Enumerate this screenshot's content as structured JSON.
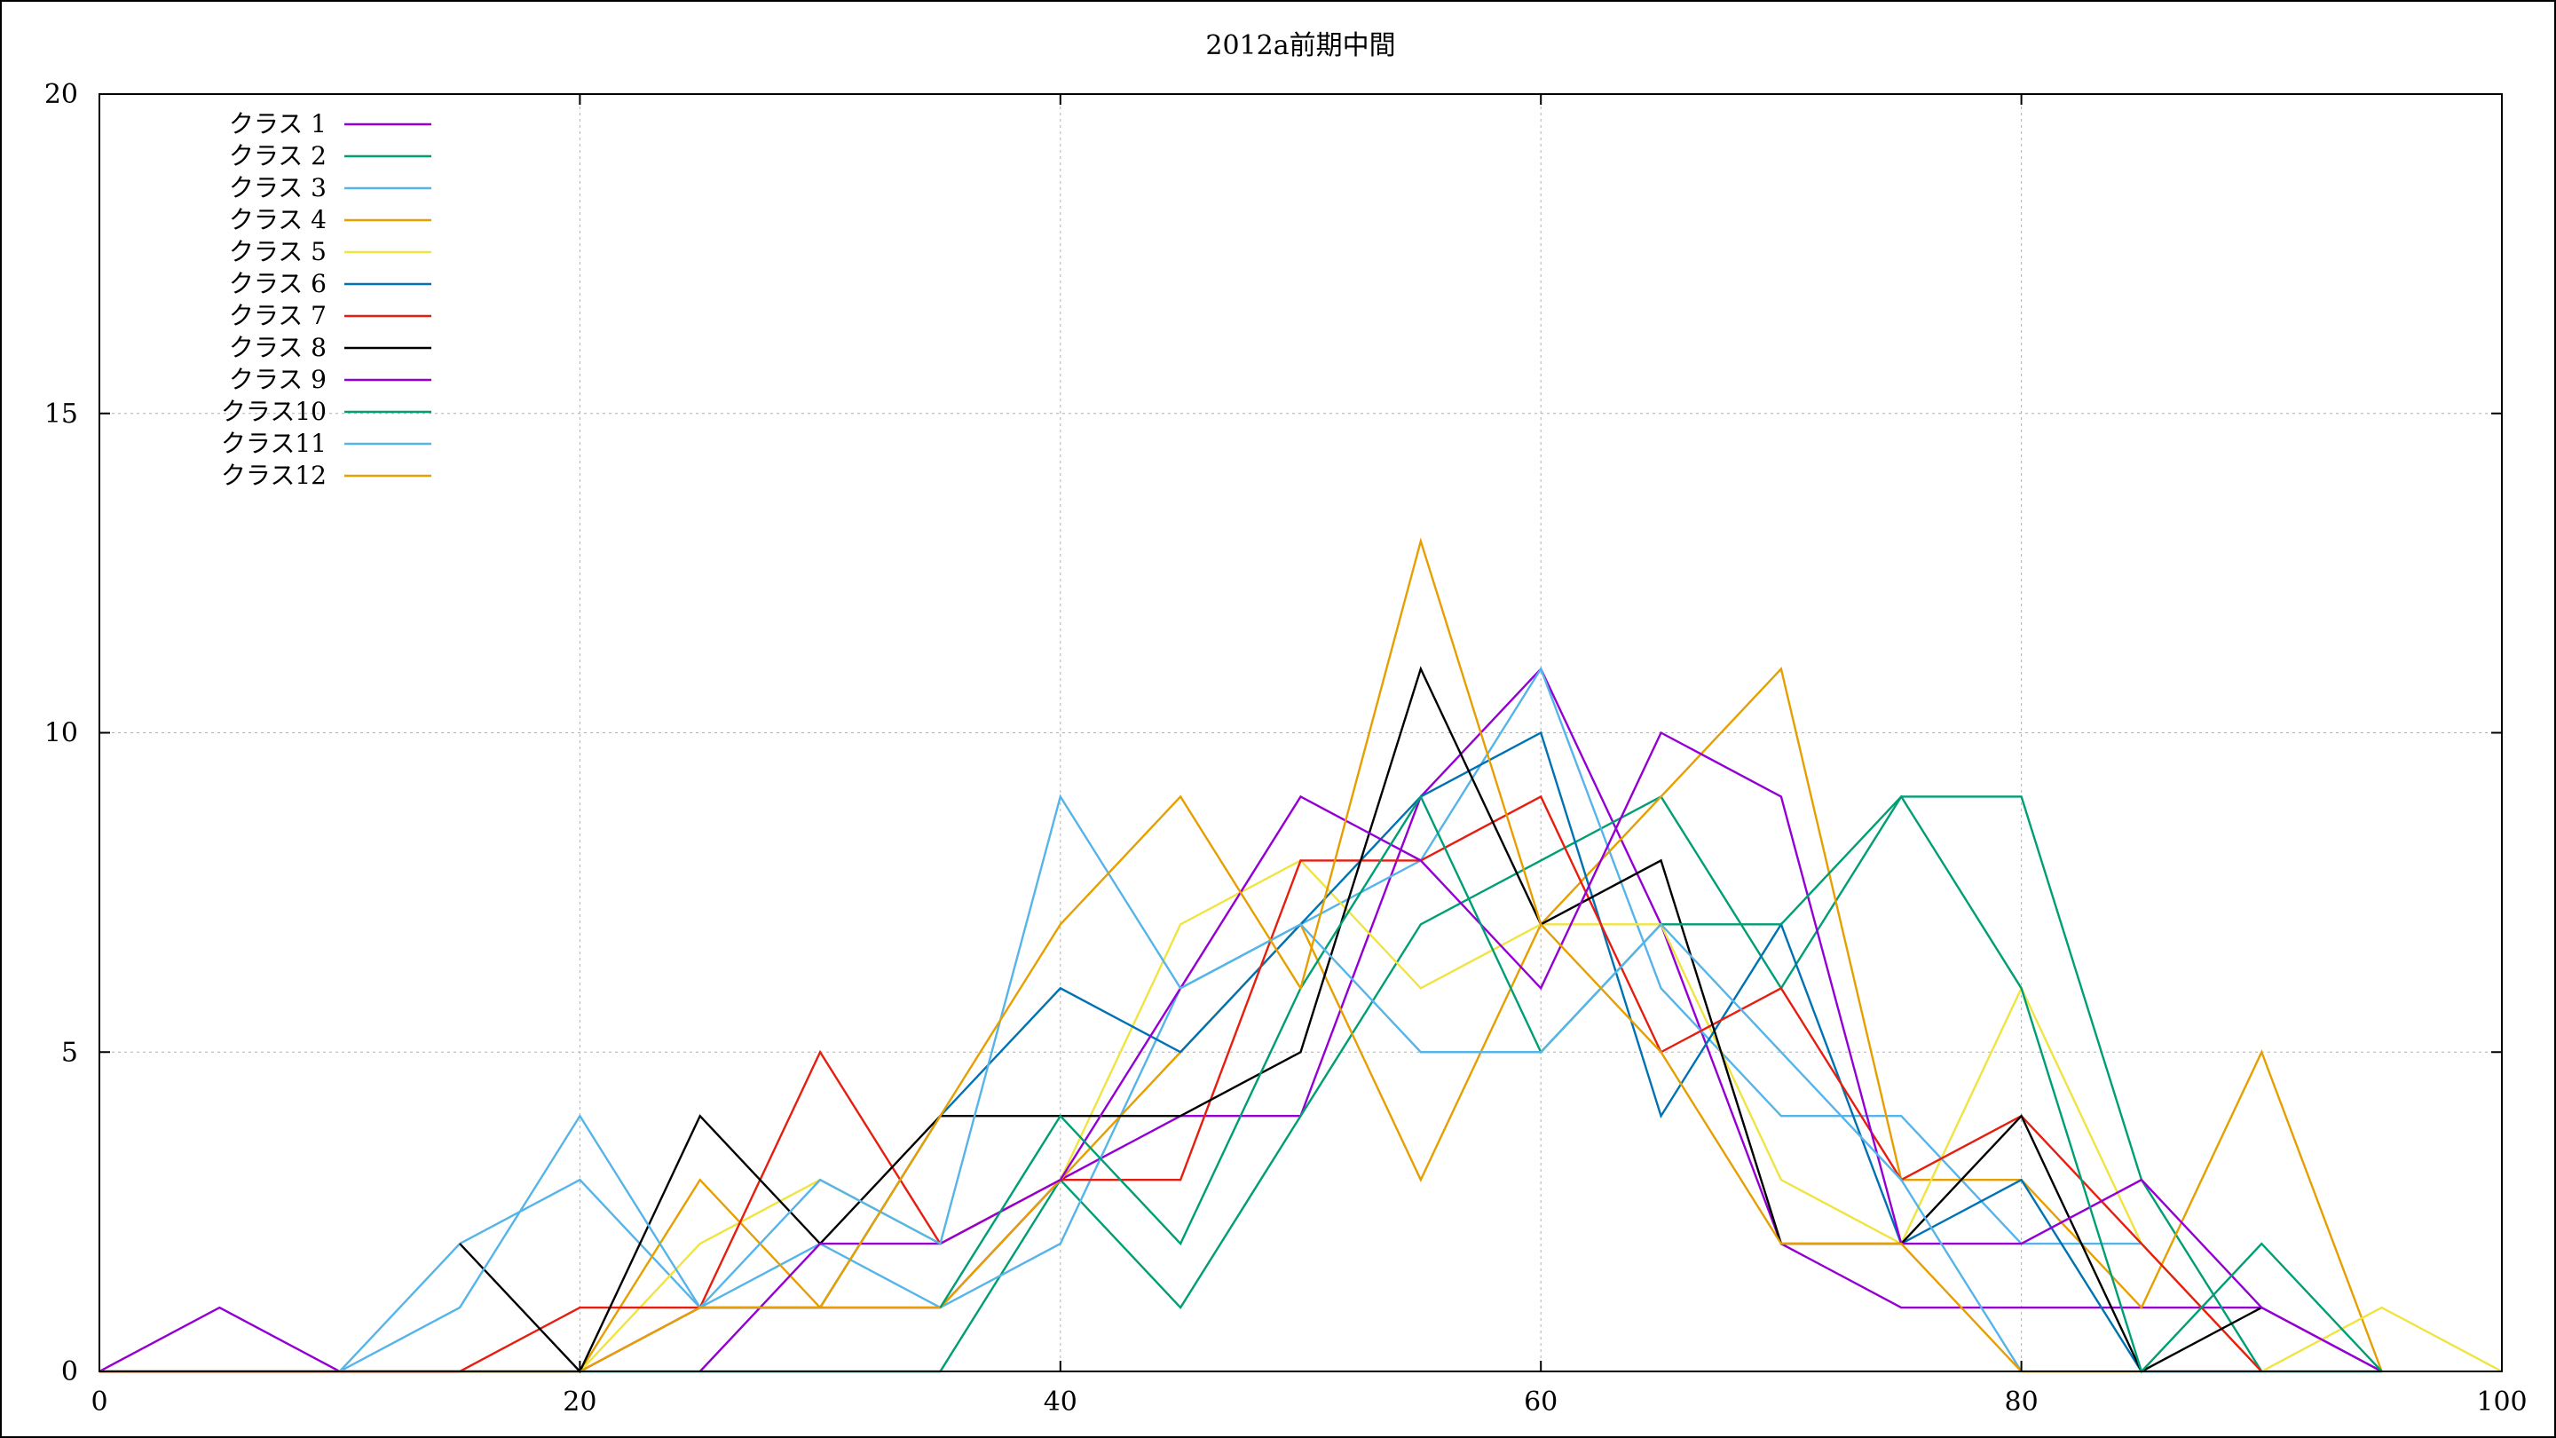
{
  "chart_data": {
    "type": "line",
    "title": "2012a前期中間",
    "xlabel": "",
    "ylabel": "",
    "xlim": [
      0,
      100
    ],
    "ylim": [
      0,
      20
    ],
    "xticks": [
      0,
      20,
      40,
      60,
      80,
      100
    ],
    "yticks": [
      0,
      5,
      10,
      15,
      20
    ],
    "grid": true,
    "legend_position": "top-left",
    "series": [
      {
        "name": "クラス 1",
        "color": "#9400d3",
        "x": [
          0,
          5,
          10,
          15,
          20,
          25,
          30,
          35,
          40,
          45,
          50,
          55,
          60,
          65,
          70,
          75,
          80,
          85,
          90,
          95
        ],
        "y": [
          0,
          1,
          0,
          0,
          0,
          1,
          1,
          1,
          3,
          4,
          4,
          9,
          11,
          7,
          2,
          1,
          1,
          1,
          1,
          0
        ]
      },
      {
        "name": "クラス 2",
        "color": "#009e73",
        "x": [
          0,
          5,
          10,
          15,
          20,
          25,
          30,
          35,
          40,
          45,
          50,
          55,
          60,
          65,
          70,
          75,
          80,
          85,
          90,
          95
        ],
        "y": [
          0,
          0,
          0,
          0,
          0,
          0,
          0,
          0,
          3,
          1,
          4,
          7,
          8,
          9,
          6,
          9,
          9,
          3,
          0,
          0
        ]
      },
      {
        "name": "クラス 3",
        "color": "#56b4e9",
        "x": [
          10,
          15,
          20,
          25,
          30,
          35,
          40,
          45,
          50,
          55,
          60,
          65,
          70,
          75,
          80,
          85
        ],
        "y": [
          0,
          2,
          3,
          1,
          2,
          1,
          2,
          6,
          7,
          8,
          11,
          6,
          4,
          4,
          2,
          2
        ]
      },
      {
        "name": "クラス 4",
        "color": "#e69f00",
        "x": [
          0,
          5,
          10,
          15,
          20,
          25,
          30,
          35,
          40,
          45,
          50,
          55,
          60,
          65,
          70,
          75,
          80,
          85,
          90,
          95
        ],
        "y": [
          0,
          0,
          0,
          0,
          0,
          3,
          1,
          1,
          3,
          5,
          7,
          3,
          7,
          9,
          11,
          3,
          3,
          1,
          5,
          0
        ]
      },
      {
        "name": "クラス 5",
        "color": "#f0e442",
        "x": [
          20,
          25,
          30,
          35,
          40,
          45,
          50,
          55,
          60,
          65,
          70,
          75,
          80,
          85,
          90,
          95,
          100
        ],
        "y": [
          0,
          2,
          3,
          2,
          3,
          7,
          8,
          6,
          7,
          7,
          3,
          2,
          6,
          2,
          0,
          1,
          0
        ]
      },
      {
        "name": "クラス 6",
        "color": "#0072b2",
        "x": [
          25,
          30,
          35,
          40,
          45,
          50,
          55,
          60,
          65,
          70,
          75,
          80,
          85,
          90
        ],
        "y": [
          1,
          1,
          4,
          6,
          5,
          7,
          9,
          10,
          4,
          7,
          2,
          3,
          0,
          0
        ]
      },
      {
        "name": "クラス 7",
        "color": "#e51e10",
        "x": [
          0,
          5,
          10,
          15,
          20,
          25,
          30,
          35,
          40,
          45,
          50,
          55,
          60,
          65,
          70,
          75,
          80,
          85,
          90
        ],
        "y": [
          0,
          0,
          0,
          0,
          1,
          1,
          5,
          2,
          3,
          3,
          8,
          8,
          9,
          5,
          6,
          3,
          4,
          2,
          0
        ]
      },
      {
        "name": "クラス 8",
        "color": "#000000",
        "x": [
          15,
          20,
          25,
          30,
          35,
          40,
          45,
          50,
          55,
          60,
          65,
          70,
          75,
          80,
          85,
          90
        ],
        "y": [
          2,
          0,
          4,
          2,
          4,
          4,
          4,
          5,
          11,
          7,
          8,
          2,
          2,
          4,
          0,
          1
        ]
      },
      {
        "name": "クラス 9",
        "color": "#9400d3",
        "x": [
          25,
          30,
          35,
          40,
          45,
          50,
          55,
          60,
          65,
          70,
          75,
          80,
          85,
          90,
          95
        ],
        "y": [
          0,
          2,
          2,
          3,
          6,
          9,
          8,
          6,
          10,
          9,
          2,
          2,
          3,
          1,
          0
        ]
      },
      {
        "name": "クラス10",
        "color": "#009e73",
        "x": [
          35,
          40,
          45,
          50,
          55,
          60,
          65,
          70,
          75,
          80,
          85,
          90,
          95
        ],
        "y": [
          1,
          4,
          2,
          6,
          9,
          5,
          7,
          7,
          9,
          6,
          0,
          2,
          0
        ]
      },
      {
        "name": "クラス11",
        "color": "#56b4e9",
        "x": [
          10,
          15,
          20,
          25,
          30,
          35,
          40,
          45,
          50,
          55,
          60,
          65,
          70,
          75,
          80
        ],
        "y": [
          0,
          1,
          4,
          1,
          3,
          2,
          9,
          6,
          7,
          5,
          5,
          7,
          5,
          3,
          0
        ]
      },
      {
        "name": "クラス12",
        "color": "#e69f00",
        "x": [
          20,
          25,
          30,
          35,
          40,
          45,
          50,
          55,
          60,
          65,
          70,
          75,
          80,
          85
        ],
        "y": [
          0,
          1,
          1,
          4,
          7,
          9,
          6,
          13,
          7,
          5,
          2,
          2,
          0,
          0
        ]
      }
    ]
  }
}
